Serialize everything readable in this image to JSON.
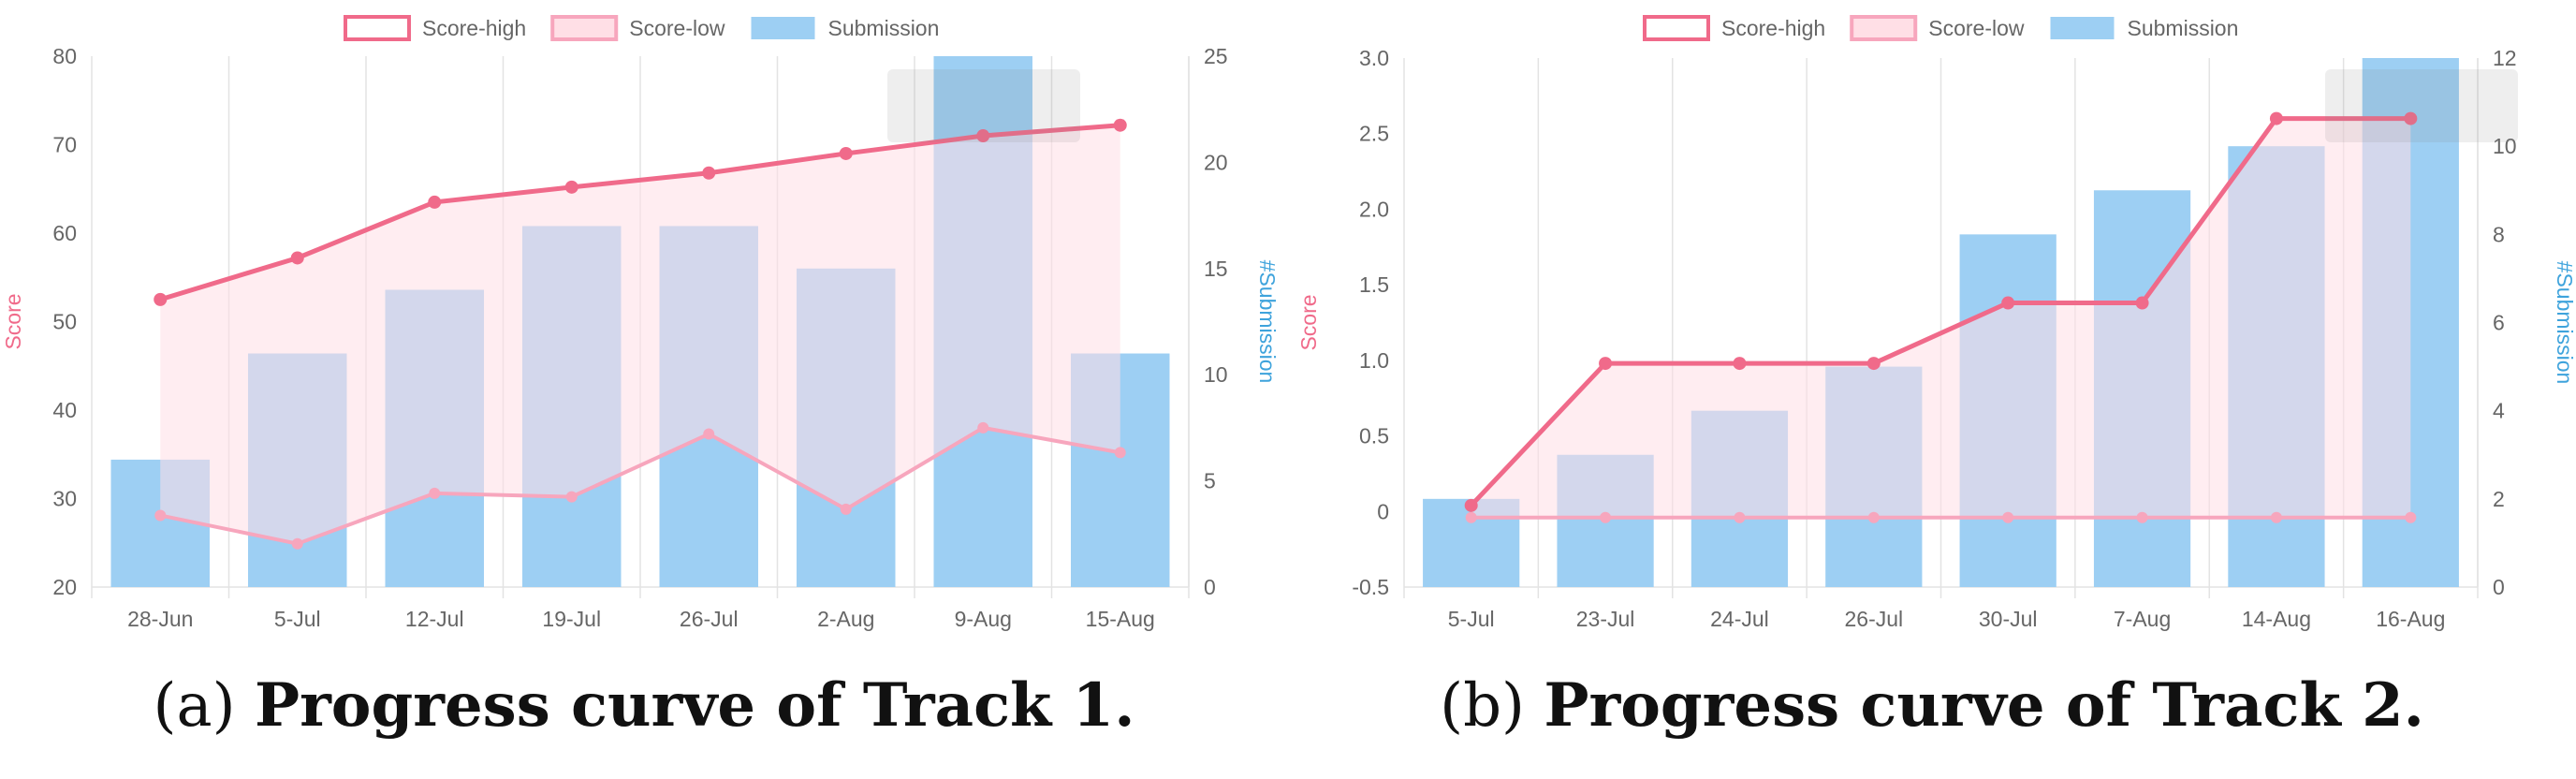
{
  "figure": {
    "panels": [
      {
        "caption_prefix": "(a)",
        "caption_title": "Progress curve of Track 1."
      },
      {
        "caption_prefix": "(b)",
        "caption_title": "Progress curve of Track 2."
      }
    ]
  },
  "colors": {
    "score_high_line": "#f06a8a",
    "score_low_line": "#f7a6bd",
    "band_fill": "#ffdfe6",
    "submission_bar": "#9dcff3",
    "score_axis_label": "#f06a8a",
    "submission_axis_label": "#3ea3dc",
    "grid": "#e3e3e3",
    "tick_label": "#666666"
  },
  "chart_data": [
    {
      "type": "bar",
      "legend": [
        "Score-high",
        "Score-low",
        "Submission"
      ],
      "legend_position": "top-center",
      "ylabel": "Score",
      "y2label": "#Submission",
      "categories": [
        "28-Jun",
        "5-Jul",
        "12-Jul",
        "19-Jul",
        "26-Jul",
        "2-Aug",
        "9-Aug",
        "15-Aug"
      ],
      "ylim": [
        20,
        80
      ],
      "yticks": [
        20,
        30,
        40,
        50,
        60,
        70,
        80
      ],
      "ytick_labels": [
        "20",
        "30",
        "40",
        "50",
        "60",
        "70",
        "80"
      ],
      "y2lim": [
        0,
        25
      ],
      "y2ticks": [
        0,
        5,
        10,
        15,
        20,
        25
      ],
      "y2tick_labels": [
        "0",
        "5",
        "10",
        "15",
        "20",
        "25"
      ],
      "grid": "vertical",
      "series": [
        {
          "name": "Score-high",
          "type": "line",
          "axis": "left",
          "values": [
            52.5,
            57.2,
            63.5,
            65.2,
            66.8,
            69.0,
            71.0,
            72.2
          ]
        },
        {
          "name": "Score-low",
          "type": "line",
          "axis": "left",
          "values": [
            28.1,
            24.9,
            30.6,
            30.2,
            37.3,
            28.8,
            38.0,
            35.2
          ]
        },
        {
          "name": "Submission",
          "type": "bar",
          "axis": "right",
          "values": [
            6,
            11,
            14,
            17,
            17,
            15,
            25,
            11
          ]
        }
      ]
    },
    {
      "type": "bar",
      "legend": [
        "Score-high",
        "Score-low",
        "Submission"
      ],
      "legend_position": "top-center",
      "ylabel": "Score",
      "y2label": "#Submission",
      "categories": [
        "5-Jul",
        "23-Jul",
        "24-Jul",
        "26-Jul",
        "30-Jul",
        "7-Aug",
        "14-Aug",
        "16-Aug"
      ],
      "ylim": [
        -0.5,
        3.0
      ],
      "yticks": [
        -0.5,
        0,
        0.5,
        1.0,
        1.5,
        2.0,
        2.5,
        3.0
      ],
      "ytick_labels": [
        "-0.5",
        "0",
        "0.5",
        "1.0",
        "1.5",
        "2.0",
        "2.5",
        "3.0"
      ],
      "y2lim": [
        0,
        12
      ],
      "y2ticks": [
        0,
        2,
        4,
        6,
        8,
        10,
        12
      ],
      "y2tick_labels": [
        "0",
        "2",
        "4",
        "6",
        "8",
        "10",
        "12"
      ],
      "grid": "vertical",
      "series": [
        {
          "name": "Score-high",
          "type": "line",
          "axis": "left",
          "values": [
            0.04,
            0.98,
            0.98,
            0.98,
            1.38,
            1.38,
            2.6,
            2.6
          ]
        },
        {
          "name": "Score-low",
          "type": "line",
          "axis": "left",
          "values": [
            -0.04,
            -0.04,
            -0.04,
            -0.04,
            -0.04,
            -0.04,
            -0.04,
            -0.04
          ]
        },
        {
          "name": "Submission",
          "type": "bar",
          "axis": "right",
          "values": [
            2,
            3,
            4,
            5,
            8,
            9,
            10,
            12
          ]
        }
      ]
    }
  ]
}
